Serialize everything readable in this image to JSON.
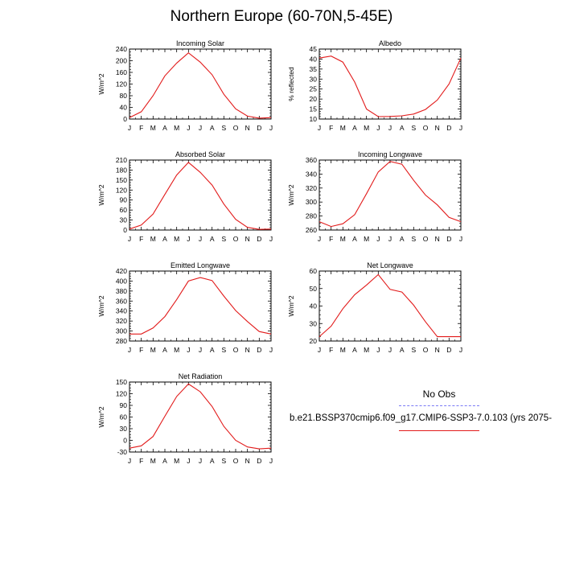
{
  "figure": {
    "title": "Northern Europe (60-70N,5-45E)",
    "legend": [
      {
        "label": "No Obs",
        "color": "#7a7af5",
        "dash": true
      },
      {
        "label": "b.e21.BSSP370cmip6.f09_g17.CMIP6-SSP3-7.0.103 (yrs 2075-",
        "color": "#e21b1b",
        "dash": false
      }
    ]
  },
  "chart_data": [
    {
      "type": "line",
      "title": "Incoming Solar",
      "ylabel": "W/m^2",
      "categories": [
        "J",
        "F",
        "M",
        "A",
        "M",
        "J",
        "J",
        "A",
        "S",
        "O",
        "N",
        "D",
        "J"
      ],
      "ylim": [
        0,
        240
      ],
      "yticks": [
        0,
        40,
        80,
        120,
        160,
        200,
        240
      ],
      "series": [
        {
          "values": [
            5,
            25,
            80,
            148,
            192,
            227,
            195,
            152,
            85,
            35,
            10,
            3,
            5
          ]
        }
      ]
    },
    {
      "type": "line",
      "title": "Albedo",
      "ylabel": "% reflected",
      "categories": [
        "J",
        "F",
        "M",
        "A",
        "M",
        "J",
        "J",
        "A",
        "S",
        "O",
        "N",
        "D",
        "J"
      ],
      "ylim": [
        10,
        45
      ],
      "yticks": [
        10,
        15,
        20,
        25,
        30,
        35,
        40,
        45
      ],
      "series": [
        {
          "values": [
            40.5,
            41.5,
            38.5,
            28.5,
            15,
            11.2,
            11.3,
            11.6,
            12.5,
            14.8,
            19.5,
            27.5,
            40.5
          ]
        }
      ]
    },
    {
      "type": "line",
      "title": "Absorbed Solar",
      "ylabel": "W/m^2",
      "categories": [
        "J",
        "F",
        "M",
        "A",
        "M",
        "J",
        "J",
        "A",
        "S",
        "O",
        "N",
        "D",
        "J"
      ],
      "ylim": [
        0,
        210
      ],
      "yticks": [
        0,
        30,
        60,
        90,
        120,
        150,
        180,
        210
      ],
      "series": [
        {
          "values": [
            3,
            15,
            48,
            107,
            165,
            203,
            173,
            135,
            78,
            32,
            8,
            2,
            3
          ]
        }
      ]
    },
    {
      "type": "line",
      "title": "Incoming Longwave",
      "ylabel": "W/m^2",
      "categories": [
        "J",
        "F",
        "M",
        "A",
        "M",
        "J",
        "J",
        "A",
        "S",
        "O",
        "N",
        "D",
        "J"
      ],
      "ylim": [
        260,
        360
      ],
      "yticks": [
        260,
        280,
        300,
        320,
        340,
        360
      ],
      "series": [
        {
          "values": [
            272,
            265,
            269,
            282,
            312,
            343,
            358,
            354,
            331,
            310,
            296,
            278,
            272
          ]
        }
      ]
    },
    {
      "type": "line",
      "title": "Emitted Longwave",
      "ylabel": "W/m^2",
      "categories": [
        "J",
        "F",
        "M",
        "A",
        "M",
        "J",
        "J",
        "A",
        "S",
        "O",
        "N",
        "D",
        "J"
      ],
      "ylim": [
        280,
        420
      ],
      "yticks": [
        280,
        300,
        320,
        340,
        360,
        380,
        400,
        420
      ],
      "series": [
        {
          "values": [
            294,
            294,
            306,
            329,
            363,
            400,
            407,
            401,
            370,
            341,
            319,
            299,
            294
          ]
        }
      ]
    },
    {
      "type": "line",
      "title": "Net Longwave",
      "ylabel": "W/m^2",
      "categories": [
        "J",
        "F",
        "M",
        "A",
        "M",
        "J",
        "J",
        "A",
        "S",
        "O",
        "N",
        "D",
        "J"
      ],
      "ylim": [
        20,
        60
      ],
      "yticks": [
        20,
        30,
        40,
        50,
        60
      ],
      "series": [
        {
          "values": [
            22.5,
            28.5,
            38.5,
            46.5,
            52,
            58,
            49.5,
            48,
            40.5,
            31,
            22.5,
            22.5,
            22.5
          ]
        }
      ]
    },
    {
      "type": "line",
      "title": "Net Radiation",
      "ylabel": "W/m^2",
      "categories": [
        "J",
        "F",
        "M",
        "A",
        "M",
        "J",
        "J",
        "A",
        "S",
        "O",
        "N",
        "D",
        "J"
      ],
      "ylim": [
        -30,
        150
      ],
      "yticks": [
        -30,
        0,
        30,
        60,
        90,
        120,
        150
      ],
      "series": [
        {
          "values": [
            -20,
            -14,
            10,
            62,
            113,
            145,
            125,
            87,
            36,
            0,
            -17,
            -22,
            -20
          ]
        }
      ]
    }
  ]
}
